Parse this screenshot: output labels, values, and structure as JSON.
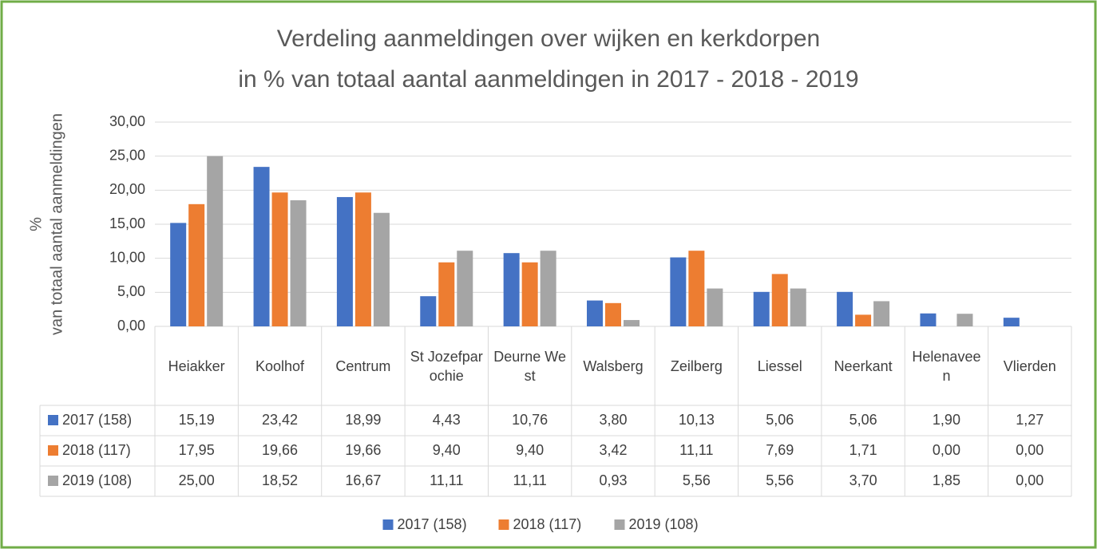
{
  "chart_data": {
    "type": "bar",
    "title": [
      "Verdeling aanmeldingen over wijken en kerkdorpen",
      "in % van totaal aantal aanmeldingen in 2017 - 2018 - 2019"
    ],
    "ylabel": [
      "%",
      "van totaal aantal aanmeldingen"
    ],
    "categories": [
      "Heiakker",
      "Koolhof",
      "Centrum",
      "St Jozefparochie",
      "Deurne West",
      "Walsberg",
      "Zeilberg",
      "Liessel",
      "Neerkant",
      "Helenaveen",
      "Vlierden"
    ],
    "series": [
      {
        "name": "2017 (158)",
        "color": "#4472c4",
        "values": [
          15.19,
          23.42,
          18.99,
          4.43,
          10.76,
          3.8,
          10.13,
          5.06,
          5.06,
          1.9,
          1.27
        ],
        "value_labels": [
          "15,19",
          "23,42",
          "18,99",
          "4,43",
          "10,76",
          "3,80",
          "10,13",
          "5,06",
          "5,06",
          "1,90",
          "1,27"
        ]
      },
      {
        "name": "2018 (117)",
        "color": "#ed7d31",
        "values": [
          17.95,
          19.66,
          19.66,
          9.4,
          9.4,
          3.42,
          11.11,
          7.69,
          1.71,
          0.0,
          0.0
        ],
        "value_labels": [
          "17,95",
          "19,66",
          "19,66",
          "9,40",
          "9,40",
          "3,42",
          "11,11",
          "7,69",
          "1,71",
          "0,00",
          "0,00"
        ]
      },
      {
        "name": "2019 (108)",
        "color": "#a5a5a5",
        "values": [
          25.0,
          18.52,
          16.67,
          11.11,
          11.11,
          0.93,
          5.56,
          5.56,
          3.7,
          1.85,
          0.0
        ],
        "value_labels": [
          "25,00",
          "18,52",
          "16,67",
          "11,11",
          "11,11",
          "0,93",
          "5,56",
          "5,56",
          "3,70",
          "1,85",
          "0,00"
        ]
      }
    ],
    "ylim": [
      0,
      30
    ],
    "yticks": [
      {
        "value": 0,
        "label": "0,00"
      },
      {
        "value": 5,
        "label": "5,00"
      },
      {
        "value": 10,
        "label": "10,00"
      },
      {
        "value": 15,
        "label": "15,00"
      },
      {
        "value": 20,
        "label": "20,00"
      },
      {
        "value": 25,
        "label": "25,00"
      },
      {
        "value": 30,
        "label": "30,00"
      }
    ],
    "grid": true,
    "legend": "bottom"
  }
}
